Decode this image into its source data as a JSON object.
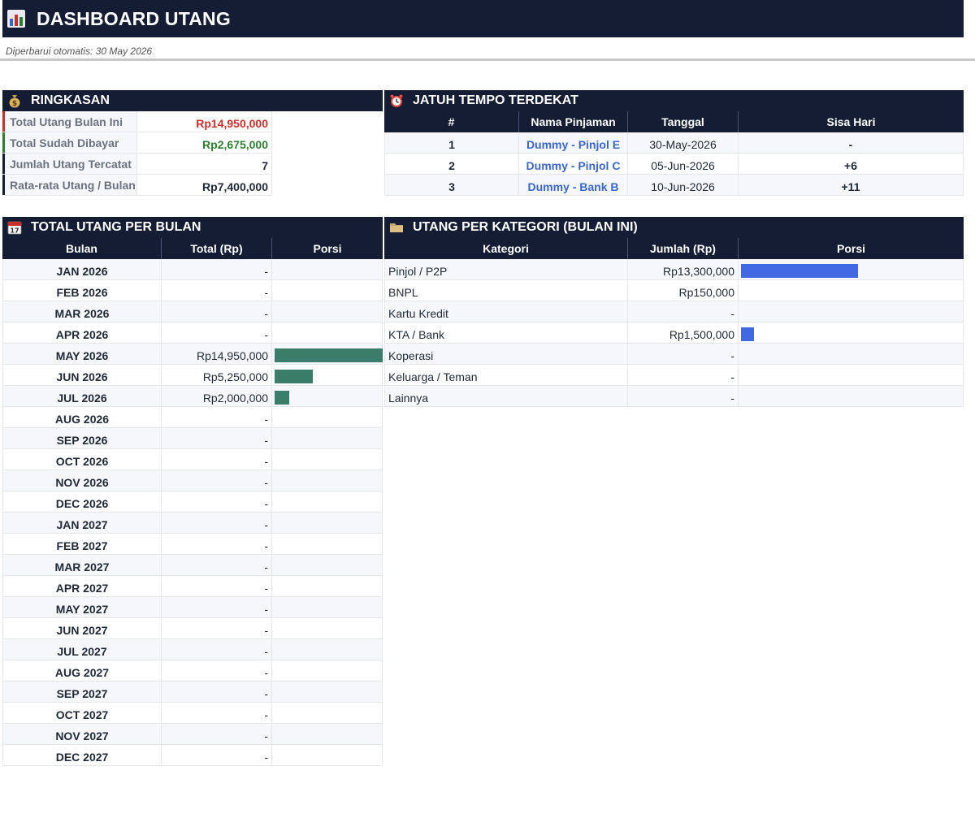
{
  "header": {
    "title": "DASHBOARD UTANG",
    "icon": "bar-chart-icon",
    "updated": "Diperbarui otomatis: 30 May 2026"
  },
  "summary": {
    "title": "RINGKASAN",
    "icon": "money-bag-icon",
    "items": [
      {
        "label": "Total Utang Bulan Ini",
        "value": "Rp14,950,000",
        "accent": "#c9302c",
        "color": "#c9302c"
      },
      {
        "label": "Total Sudah Dibayar",
        "value": "Rp2,675,000",
        "accent": "#2e7d32",
        "color": "#2e7d32"
      },
      {
        "label": "Jumlah Utang Tercatat",
        "value": "7",
        "accent": "#141d33",
        "color": "#1f2937"
      },
      {
        "label": "Rata-rata Utang / Bulan",
        "value": "Rp7,400,000",
        "accent": "#141d33",
        "color": "#1f2937"
      }
    ]
  },
  "due": {
    "title": "JATUH TEMPO TERDEKAT",
    "icon": "alarm-clock-icon",
    "columns": [
      "#",
      "Nama Pinjaman",
      "Tanggal",
      "Sisa Hari"
    ],
    "rows": [
      {
        "no": "1",
        "name": "Dummy - Pinjol E",
        "date": "30-May-2026",
        "days": "-"
      },
      {
        "no": "2",
        "name": "Dummy - Pinjol C",
        "date": "05-Jun-2026",
        "days": "+6"
      },
      {
        "no": "3",
        "name": "Dummy - Bank B",
        "date": "10-Jun-2026",
        "days": "+11"
      }
    ]
  },
  "monthly": {
    "title": "TOTAL UTANG PER BULAN",
    "icon": "calendar-icon",
    "columns": [
      "Bulan",
      "Total (Rp)",
      "Porsi"
    ],
    "bar_color": "#3a7d68",
    "rows": [
      {
        "month": "JAN 2026",
        "total": "-",
        "portion": 0
      },
      {
        "month": "FEB 2026",
        "total": "-",
        "portion": 0
      },
      {
        "month": "MAR 2026",
        "total": "-",
        "portion": 0
      },
      {
        "month": "APR 2026",
        "total": "-",
        "portion": 0
      },
      {
        "month": "MAY 2026",
        "total": "Rp14,950,000",
        "portion": 1.0
      },
      {
        "month": "JUN 2026",
        "total": "Rp5,250,000",
        "portion": 0.351
      },
      {
        "month": "JUL 2026",
        "total": "Rp2,000,000",
        "portion": 0.134
      },
      {
        "month": "AUG 2026",
        "total": "-",
        "portion": 0
      },
      {
        "month": "SEP 2026",
        "total": "-",
        "portion": 0
      },
      {
        "month": "OCT 2026",
        "total": "-",
        "portion": 0
      },
      {
        "month": "NOV 2026",
        "total": "-",
        "portion": 0
      },
      {
        "month": "DEC 2026",
        "total": "-",
        "portion": 0
      },
      {
        "month": "JAN 2027",
        "total": "-",
        "portion": 0
      },
      {
        "month": "FEB 2027",
        "total": "-",
        "portion": 0
      },
      {
        "month": "MAR 2027",
        "total": "-",
        "portion": 0
      },
      {
        "month": "APR 2027",
        "total": "-",
        "portion": 0
      },
      {
        "month": "MAY 2027",
        "total": "-",
        "portion": 0
      },
      {
        "month": "JUN 2027",
        "total": "-",
        "portion": 0
      },
      {
        "month": "JUL 2027",
        "total": "-",
        "portion": 0
      },
      {
        "month": "AUG 2027",
        "total": "-",
        "portion": 0
      },
      {
        "month": "SEP 2027",
        "total": "-",
        "portion": 0
      },
      {
        "month": "OCT 2027",
        "total": "-",
        "portion": 0
      },
      {
        "month": "NOV 2027",
        "total": "-",
        "portion": 0
      },
      {
        "month": "DEC 2027",
        "total": "-",
        "portion": 0
      }
    ]
  },
  "category": {
    "title": "UTANG PER KATEGORI (BULAN INI)",
    "icon": "folder-icon",
    "columns": [
      "Kategori",
      "Jumlah (Rp)",
      "Porsi"
    ],
    "bar_color": "#4169e1",
    "rows": [
      {
        "name": "Pinjol / P2P",
        "amount": "Rp13,300,000",
        "portion": 0.89
      },
      {
        "name": "BNPL",
        "amount": "Rp150,000",
        "portion": 0.01
      },
      {
        "name": "Kartu Kredit",
        "amount": "-",
        "portion": 0
      },
      {
        "name": "KTA / Bank",
        "amount": "Rp1,500,000",
        "portion": 0.1
      },
      {
        "name": "Koperasi",
        "amount": "-",
        "portion": 0
      },
      {
        "name": "Keluarga / Teman",
        "amount": "-",
        "portion": 0
      },
      {
        "name": "Lainnya",
        "amount": "-",
        "portion": 0
      }
    ]
  }
}
